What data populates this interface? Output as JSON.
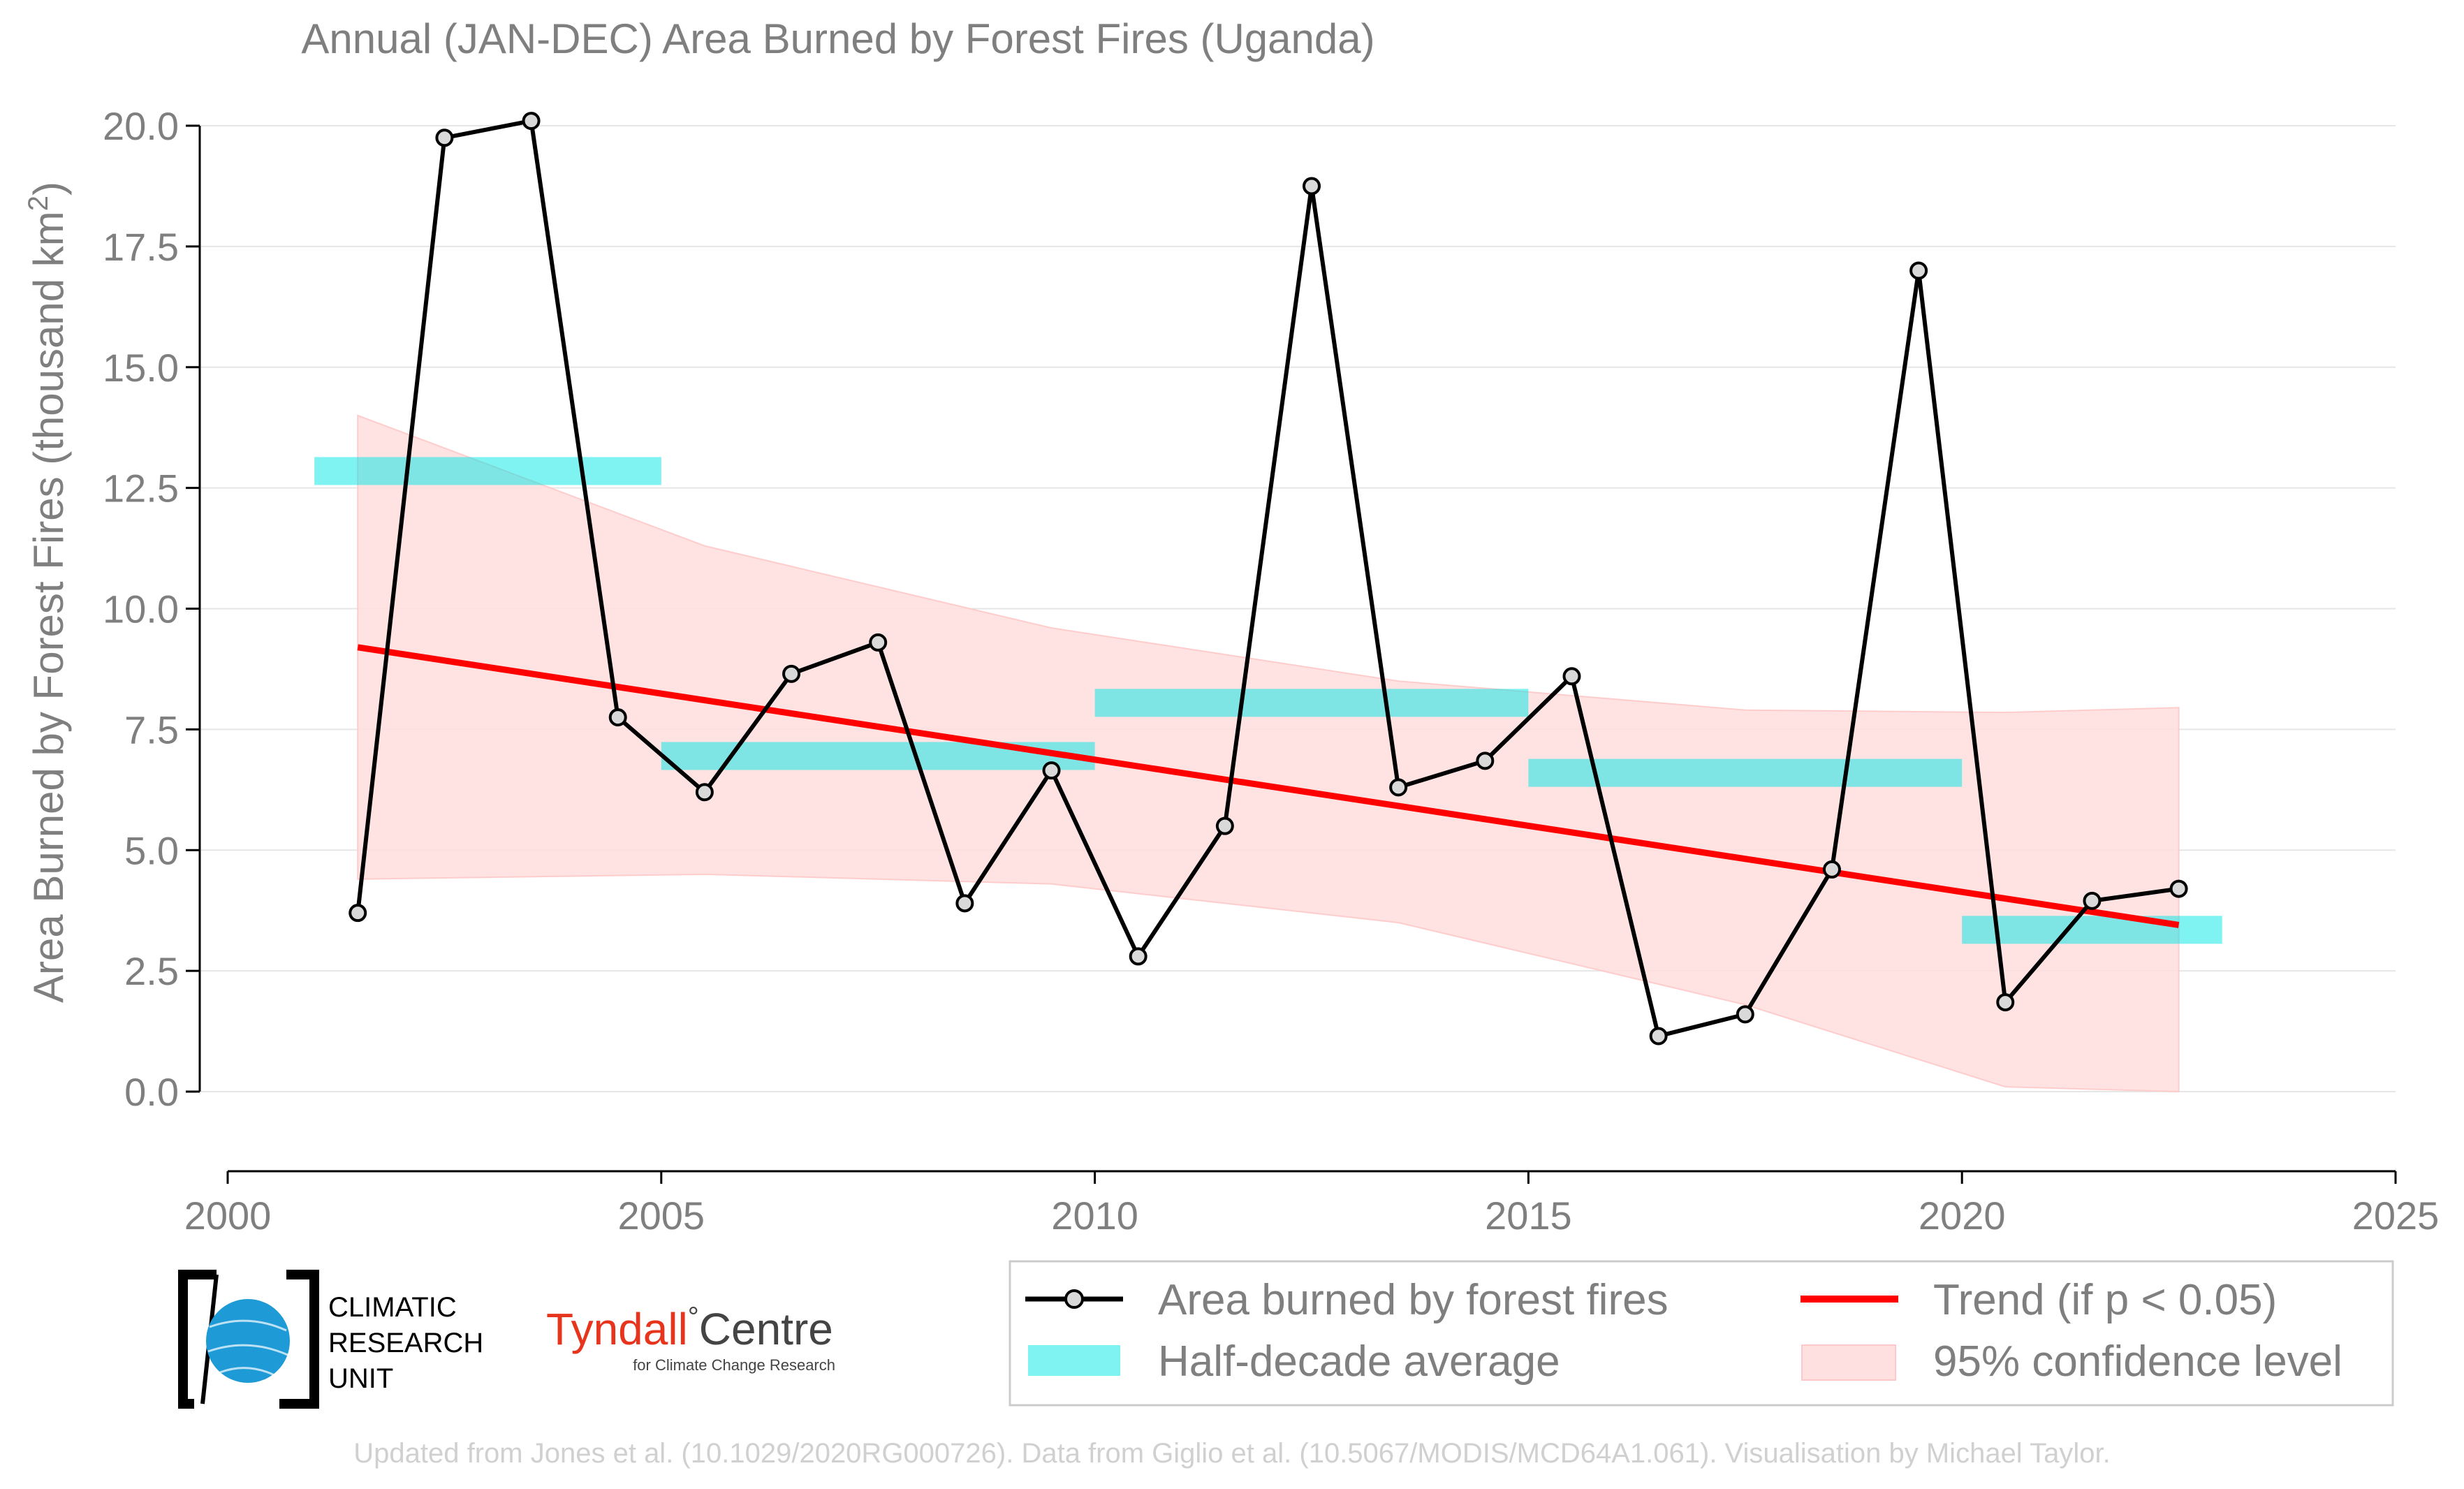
{
  "chart_data": {
    "type": "line",
    "title": "Annual (JAN-DEC) Area Burned by Forest Fires (Uganda)",
    "ylabel": "Area Burned by Forest Fires (thousand km",
    "ylabel_sup": "2",
    "ylabel_close": ")",
    "xlim": [
      2000,
      2025
    ],
    "ylim": [
      -1.5,
      20.5
    ],
    "x_ticks": [
      2000,
      2005,
      2010,
      2015,
      2020,
      2025
    ],
    "x_tick_labels": [
      "2000",
      "2005",
      "2010",
      "2015",
      "2020",
      "2025"
    ],
    "y_ticks": [
      0,
      2.5,
      5,
      7.5,
      10,
      12.5,
      15,
      17.5,
      20
    ],
    "y_tick_labels": [
      "0.0",
      "2.5",
      "5.0",
      "7.5",
      "10.0",
      "12.5",
      "15.0",
      "17.5",
      "20.0"
    ],
    "grid": true,
    "series": [
      {
        "name": "Area burned by forest fires",
        "color": "#000000",
        "x": [
          2001.5,
          2002.5,
          2003.5,
          2004.5,
          2005.5,
          2006.5,
          2007.5,
          2008.5,
          2009.5,
          2010.5,
          2011.5,
          2012.5,
          2013.5,
          2014.5,
          2015.5,
          2016.5,
          2017.5,
          2018.5,
          2019.5,
          2020.5,
          2021.5,
          2022.5
        ],
        "values": [
          3.7,
          19.75,
          20.1,
          7.75,
          6.2,
          8.65,
          9.3,
          3.9,
          6.65,
          2.8,
          5.5,
          18.75,
          6.3,
          6.85,
          8.6,
          1.15,
          1.6,
          4.6,
          17.0,
          1.85,
          3.95,
          4.2
        ]
      }
    ],
    "half_decade_average": {
      "name": "Half-decade average",
      "color": "#00e5e5",
      "segments": [
        {
          "x_start": 2001,
          "x_end": 2005,
          "value": 12.85
        },
        {
          "x_start": 2005,
          "x_end": 2010,
          "value": 6.95
        },
        {
          "x_start": 2010,
          "x_end": 2015,
          "value": 8.05
        },
        {
          "x_start": 2015,
          "x_end": 2020,
          "value": 6.6
        },
        {
          "x_start": 2020,
          "x_end": 2023,
          "value": 3.35
        }
      ]
    },
    "trend": {
      "name": "Trend (if p < 0.05)",
      "color": "#ff0000",
      "x": [
        2001.5,
        2022.5
      ],
      "values": [
        9.2,
        3.45
      ]
    },
    "confidence_band": {
      "name": "95% confidence level",
      "color": "#ffaaaa",
      "x": [
        2001.5,
        2005.5,
        2009.5,
        2013.5,
        2017.5,
        2020.5,
        2022.5
      ],
      "upper": [
        14.0,
        11.3,
        9.6,
        8.5,
        7.9,
        7.85,
        7.95
      ],
      "lower": [
        4.4,
        4.5,
        4.3,
        3.5,
        1.8,
        0.1,
        0.0
      ]
    },
    "legend_position": "bottom-right"
  },
  "footer": "Updated from Jones et al. (10.1029/2020RG000726). Data from Giglio et al. (10.5067/MODIS/MCD64A1.061). Visualisation by Michael Taylor.",
  "logos": {
    "cru": [
      "CLIMATIC",
      "RESEARCH",
      "UNIT"
    ],
    "tyndall_main": "Tyndall",
    "tyndall_degree": "°",
    "tyndall_centre": "Centre",
    "tyndall_sub": "for Climate Change Research"
  }
}
